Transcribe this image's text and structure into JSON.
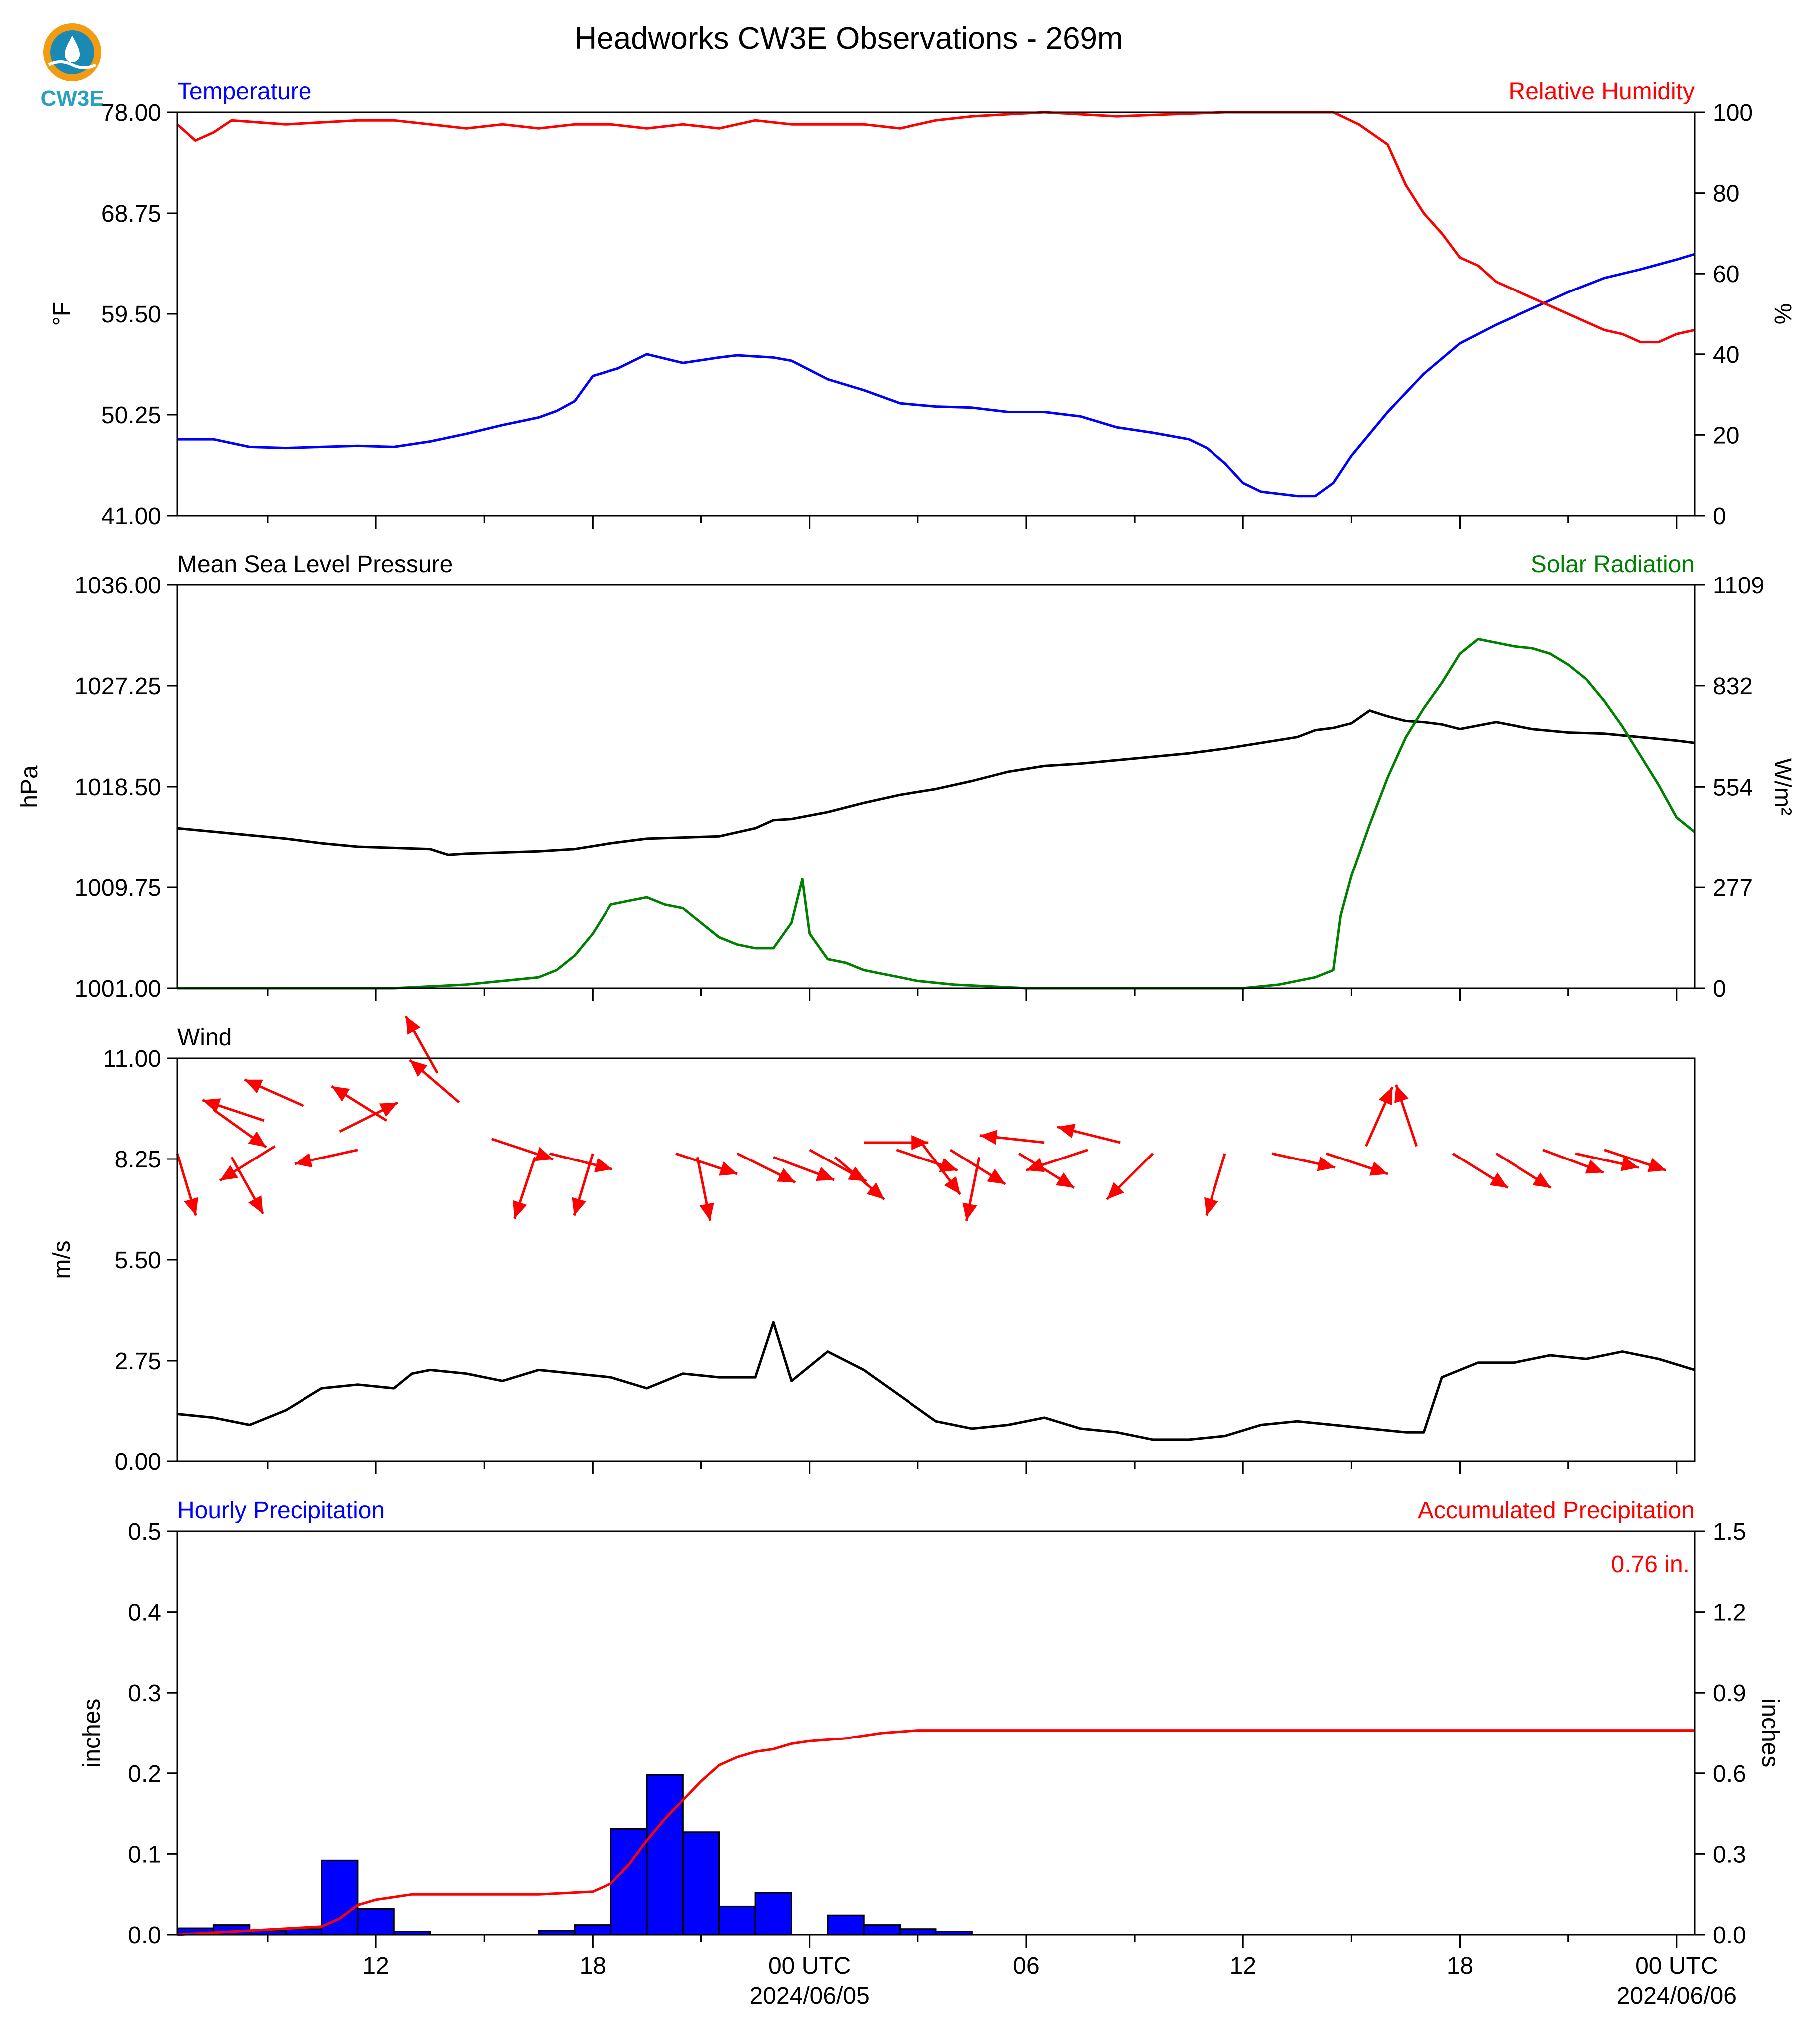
{
  "title": "Headworks CW3E Observations - 269m",
  "logo": {
    "text": "CW3E",
    "colors": [
      "#f39c12",
      "#1a8ab5",
      "#2a9fbf"
    ]
  },
  "colors": {
    "blue": "#0000ff",
    "red": "#ff0000",
    "green": "#008000",
    "black": "#000000"
  },
  "time_axis": {
    "start_hour": 6.5,
    "end_hour": 48.5,
    "major_ticks": [
      {
        "h": 12,
        "label": "12",
        "date": ""
      },
      {
        "h": 18,
        "label": "18",
        "date": ""
      },
      {
        "h": 24,
        "label": "00 UTC",
        "date": "2024/06/05"
      },
      {
        "h": 30,
        "label": "06",
        "date": ""
      },
      {
        "h": 36,
        "label": "12",
        "date": ""
      },
      {
        "h": 42,
        "label": "18",
        "date": ""
      },
      {
        "h": 48,
        "label": "00 UTC",
        "date": "2024/06/06"
      }
    ]
  },
  "chart_data": [
    {
      "type": "line",
      "panel": "temperature_humidity",
      "left_title": "Temperature",
      "right_title": "Relative Humidity",
      "ylabel": "°F",
      "ylabel_right": "%",
      "ylim": [
        41.0,
        78.0
      ],
      "yticks": [
        "41.00",
        "50.25",
        "59.50",
        "68.75",
        "78.00"
      ],
      "ylim_right": [
        0,
        100
      ],
      "yticks_right": [
        "0",
        "20",
        "40",
        "60",
        "80",
        "100"
      ],
      "series": [
        {
          "axis": "left",
          "color": "#0000ff",
          "x": [
            6.5,
            7.5,
            8.5,
            9.5,
            10.5,
            11.5,
            12.5,
            13.5,
            14.5,
            15.5,
            16.5,
            17.0,
            17.5,
            18.0,
            18.7,
            19.5,
            20.5,
            21.5,
            22.0,
            22.5,
            23.0,
            23.5,
            24.5,
            25.5,
            26.5,
            27.5,
            28.5,
            29.5,
            30.5,
            31.5,
            32.5,
            33.5,
            34.5,
            35.0,
            35.5,
            36.0,
            36.5,
            37.0,
            37.5,
            38.0,
            38.5,
            39.0,
            40.0,
            41.0,
            42.0,
            43.0,
            44.0,
            45.0,
            46.0,
            47.0,
            48.0,
            48.5
          ],
          "y": [
            48.0,
            48.0,
            47.3,
            47.2,
            47.3,
            47.4,
            47.3,
            47.8,
            48.5,
            49.3,
            50.0,
            50.6,
            51.5,
            53.8,
            54.5,
            55.8,
            55.0,
            55.5,
            55.7,
            55.6,
            55.5,
            55.2,
            53.5,
            52.5,
            51.3,
            51.0,
            50.9,
            50.5,
            50.5,
            50.1,
            49.1,
            48.6,
            48.0,
            47.2,
            45.8,
            44.0,
            43.2,
            43.0,
            42.8,
            42.8,
            44.0,
            46.5,
            50.5,
            54.0,
            56.8,
            58.5,
            60.0,
            61.5,
            62.8,
            63.6,
            64.5,
            65.0
          ]
        },
        {
          "axis": "right",
          "color": "#ff0000",
          "x": [
            6.5,
            7.0,
            7.5,
            8.0,
            9.5,
            11.5,
            12.5,
            13.5,
            14.5,
            15.5,
            16.5,
            17.5,
            18.5,
            19.5,
            20.5,
            21.5,
            22.5,
            23.5,
            24.5,
            25.5,
            26.5,
            27.5,
            28.5,
            30.5,
            32.5,
            35.5,
            37.5,
            38.5,
            39.2,
            40.0,
            40.5,
            41.0,
            41.5,
            42.0,
            42.5,
            43.0,
            43.5,
            44.0,
            44.5,
            45.0,
            45.5,
            46.0,
            46.5,
            47.0,
            47.5,
            48.0,
            48.5
          ],
          "y": [
            97,
            93,
            95,
            98,
            97,
            98,
            98,
            97,
            96,
            97,
            96,
            97,
            97,
            96,
            97,
            96,
            98,
            97,
            97,
            97,
            96,
            98,
            99,
            100,
            99,
            100,
            100,
            100,
            97,
            92,
            82,
            75,
            70,
            64,
            62,
            58,
            56,
            54,
            52,
            50,
            48,
            46,
            45,
            43,
            43,
            45,
            46
          ]
        }
      ]
    },
    {
      "type": "line",
      "panel": "pressure_solar",
      "left_title": "Mean Sea Level Pressure",
      "right_title": "Solar Radiation",
      "ylabel": "hPa",
      "ylabel_right": "W/m²",
      "ylim": [
        1001.0,
        1036.0
      ],
      "yticks": [
        "1001.00",
        "1009.75",
        "1018.50",
        "1027.25",
        "1036.00"
      ],
      "ylim_right": [
        0,
        1109
      ],
      "yticks_right": [
        "0",
        "277",
        "554",
        "832",
        "1109"
      ],
      "series": [
        {
          "axis": "left",
          "color": "#000000",
          "x": [
            6.5,
            7.5,
            8.5,
            9.5,
            10.5,
            11.5,
            12.5,
            13.5,
            14.0,
            14.5,
            15.5,
            16.5,
            17.5,
            18.5,
            19.5,
            20.5,
            21.5,
            22.5,
            23.0,
            23.5,
            24.5,
            25.5,
            26.5,
            27.5,
            28.5,
            29.5,
            30.5,
            31.5,
            32.5,
            33.5,
            34.5,
            35.5,
            36.5,
            37.5,
            38.0,
            38.5,
            39.0,
            39.5,
            40.0,
            40.5,
            41.0,
            41.5,
            42.0,
            42.5,
            43.0,
            44.0,
            45.0,
            46.0,
            47.0,
            48.0,
            48.5
          ],
          "y": [
            1014.9,
            1014.6,
            1014.3,
            1014.0,
            1013.6,
            1013.3,
            1013.2,
            1013.1,
            1012.6,
            1012.7,
            1012.8,
            1012.9,
            1013.1,
            1013.6,
            1014.0,
            1014.1,
            1014.2,
            1014.9,
            1015.6,
            1015.7,
            1016.3,
            1017.1,
            1017.8,
            1018.3,
            1019.0,
            1019.8,
            1020.3,
            1020.5,
            1020.8,
            1021.1,
            1021.4,
            1021.8,
            1022.3,
            1022.8,
            1023.4,
            1023.6,
            1024.0,
            1025.1,
            1024.6,
            1024.2,
            1024.1,
            1023.9,
            1023.5,
            1023.8,
            1024.1,
            1023.5,
            1023.2,
            1023.1,
            1022.8,
            1022.5,
            1022.3
          ]
        },
        {
          "axis": "right",
          "color": "#008000",
          "x": [
            6.5,
            8.5,
            10.5,
            12.5,
            13.5,
            14.5,
            15.5,
            16.5,
            17.0,
            17.5,
            18.0,
            18.5,
            19.0,
            19.5,
            20.0,
            20.5,
            21.0,
            21.5,
            22.0,
            22.5,
            23.0,
            23.5,
            23.8,
            24.0,
            24.5,
            25.0,
            25.5,
            26.0,
            27.0,
            28.0,
            29.0,
            30.0,
            32.0,
            34.0,
            35.0,
            36.0,
            37.0,
            38.0,
            38.5,
            38.7,
            39.0,
            39.5,
            40.0,
            40.5,
            41.0,
            41.5,
            42.0,
            42.5,
            43.0,
            43.5,
            44.0,
            44.5,
            45.0,
            45.5,
            46.0,
            46.5,
            47.0,
            47.5,
            48.0,
            48.5
          ],
          "y": [
            0,
            0,
            0,
            0,
            5,
            10,
            20,
            30,
            50,
            90,
            150,
            230,
            240,
            250,
            230,
            220,
            180,
            140,
            120,
            110,
            110,
            180,
            300,
            150,
            80,
            70,
            50,
            40,
            20,
            10,
            5,
            0,
            0,
            0,
            0,
            0,
            10,
            30,
            50,
            200,
            310,
            450,
            580,
            690,
            770,
            840,
            920,
            960,
            950,
            940,
            935,
            920,
            890,
            850,
            790,
            720,
            640,
            560,
            470,
            430
          ]
        }
      ]
    },
    {
      "type": "line",
      "panel": "wind",
      "left_title": "Wind",
      "ylabel": "m/s",
      "ylim": [
        0.0,
        11.0
      ],
      "yticks": [
        "0.00",
        "2.75",
        "5.50",
        "8.25",
        "11.00"
      ],
      "series": [
        {
          "axis": "left",
          "color": "#000000",
          "x": [
            6.5,
            7.5,
            8.5,
            9.5,
            10.5,
            11.5,
            12.5,
            13.0,
            13.5,
            14.5,
            15.5,
            16.5,
            17.5,
            18.5,
            19.5,
            20.5,
            21.5,
            22.5,
            23.0,
            23.5,
            24.5,
            25.5,
            26.5,
            27.5,
            28.5,
            29.5,
            30.5,
            31.5,
            32.5,
            33.5,
            34.5,
            35.5,
            36.5,
            37.5,
            38.5,
            39.5,
            40.5,
            41.0,
            41.5,
            42.5,
            43.5,
            44.5,
            45.5,
            46.5,
            47.5,
            48.5
          ],
          "y": [
            1.3,
            1.2,
            1.0,
            1.4,
            2.0,
            2.1,
            2.0,
            2.4,
            2.5,
            2.4,
            2.2,
            2.5,
            2.4,
            2.3,
            2.0,
            2.4,
            2.3,
            2.3,
            3.8,
            2.2,
            3.0,
            2.5,
            1.8,
            1.1,
            0.9,
            1.0,
            1.2,
            0.9,
            0.8,
            0.6,
            0.6,
            0.7,
            1.0,
            1.1,
            1.0,
            0.9,
            0.8,
            0.8,
            2.3,
            2.7,
            2.7,
            2.9,
            2.8,
            3.0,
            2.8,
            2.5
          ]
        }
      ],
      "barbs_note": "arrows show wind direction",
      "arrows": [
        {
          "x": 6.5,
          "y": 8.4,
          "u": 0.3,
          "v": -1.0
        },
        {
          "x": 7.5,
          "y": 9.6,
          "u": 0.7,
          "v": -0.5
        },
        {
          "x": 8.0,
          "y": 8.3,
          "u": 0.5,
          "v": -0.9
        },
        {
          "x": 8.9,
          "y": 9.3,
          "u": -0.9,
          "v": 0.3
        },
        {
          "x": 9.2,
          "y": 8.6,
          "u": -0.8,
          "v": -0.5
        },
        {
          "x": 10.0,
          "y": 9.7,
          "u": -0.9,
          "v": 0.4
        },
        {
          "x": 11.0,
          "y": 9.0,
          "u": 0.8,
          "v": 0.4
        },
        {
          "x": 11.5,
          "y": 8.5,
          "u": -0.9,
          "v": -0.2
        },
        {
          "x": 12.3,
          "y": 9.3,
          "u": -0.8,
          "v": 0.5
        },
        {
          "x": 13.7,
          "y": 10.6,
          "u": -0.5,
          "v": 0.9
        },
        {
          "x": 14.3,
          "y": 9.8,
          "u": -0.7,
          "v": 0.6
        },
        {
          "x": 15.2,
          "y": 8.8,
          "u": 0.9,
          "v": -0.3
        },
        {
          "x": 16.4,
          "y": 8.3,
          "u": -0.3,
          "v": -0.9
        },
        {
          "x": 16.8,
          "y": 8.4,
          "u": 0.8,
          "v": -0.2
        },
        {
          "x": 18.0,
          "y": 8.4,
          "u": -0.3,
          "v": -1.0
        },
        {
          "x": 20.3,
          "y": 8.4,
          "u": 0.9,
          "v": -0.3
        },
        {
          "x": 20.9,
          "y": 8.3,
          "u": 0.2,
          "v": -1.0
        },
        {
          "x": 22.0,
          "y": 8.4,
          "u": 0.8,
          "v": -0.4
        },
        {
          "x": 23.0,
          "y": 8.3,
          "u": 0.8,
          "v": -0.3
        },
        {
          "x": 24.0,
          "y": 8.5,
          "u": 0.9,
          "v": -0.5
        },
        {
          "x": 24.7,
          "y": 8.3,
          "u": 0.7,
          "v": -0.6
        },
        {
          "x": 25.5,
          "y": 8.7,
          "u": 0.9,
          "v": 0.0
        },
        {
          "x": 26.4,
          "y": 8.5,
          "u": 0.9,
          "v": -0.3
        },
        {
          "x": 27.1,
          "y": 8.7,
          "u": 0.6,
          "v": -0.8
        },
        {
          "x": 27.9,
          "y": 8.5,
          "u": 0.8,
          "v": -0.5
        },
        {
          "x": 28.7,
          "y": 8.3,
          "u": -0.2,
          "v": -1.0
        },
        {
          "x": 29.8,
          "y": 8.4,
          "u": 0.8,
          "v": -0.5
        },
        {
          "x": 30.5,
          "y": 8.7,
          "u": -0.9,
          "v": 0.1
        },
        {
          "x": 31.7,
          "y": 8.5,
          "u": -0.9,
          "v": -0.3
        },
        {
          "x": 32.6,
          "y": 8.7,
          "u": -0.8,
          "v": 0.2
        },
        {
          "x": 33.5,
          "y": 8.4,
          "u": -0.7,
          "v": -0.7
        },
        {
          "x": 35.5,
          "y": 8.4,
          "u": -0.3,
          "v": -1.0
        },
        {
          "x": 36.8,
          "y": 8.4,
          "u": 0.9,
          "v": -0.2
        },
        {
          "x": 38.3,
          "y": 8.4,
          "u": 0.9,
          "v": -0.3
        },
        {
          "x": 39.4,
          "y": 8.6,
          "u": 0.4,
          "v": 0.9
        },
        {
          "x": 40.8,
          "y": 8.6,
          "u": -0.3,
          "v": 0.9
        },
        {
          "x": 41.8,
          "y": 8.4,
          "u": 0.8,
          "v": -0.5
        },
        {
          "x": 43.0,
          "y": 8.4,
          "u": 0.8,
          "v": -0.5
        },
        {
          "x": 44.3,
          "y": 8.5,
          "u": 0.8,
          "v": -0.3
        },
        {
          "x": 45.2,
          "y": 8.4,
          "u": 0.9,
          "v": -0.2
        },
        {
          "x": 46.0,
          "y": 8.5,
          "u": 0.9,
          "v": -0.3
        }
      ]
    },
    {
      "type": "bar",
      "panel": "precipitation",
      "left_title": "Hourly Precipitation",
      "right_title": "Accumulated Precipitation",
      "ylabel": "inches",
      "ylabel_right": "inches",
      "ylim": [
        0.0,
        0.5
      ],
      "yticks": [
        "0.0",
        "0.1",
        "0.2",
        "0.3",
        "0.4",
        "0.5"
      ],
      "ylim_right": [
        0.0,
        1.5
      ],
      "yticks_right": [
        "0.0",
        "0.3",
        "0.6",
        "0.9",
        "1.2",
        "1.5"
      ],
      "total_label": "0.76 in.",
      "hourly_bars": {
        "x": [
          7.0,
          8.0,
          9.0,
          10.0,
          11.0,
          12.0,
          13.0,
          14.0,
          15.0,
          16.0,
          17.0,
          18.0,
          19.0,
          20.0,
          21.0,
          22.0,
          23.0,
          24.0,
          25.0,
          26.0,
          27.0,
          28.0,
          29.0
        ],
        "values": [
          0.008,
          0.012,
          0.005,
          0.007,
          0.092,
          0.032,
          0.004,
          0.0,
          0.0,
          0.0,
          0.005,
          0.012,
          0.131,
          0.198,
          0.127,
          0.035,
          0.052,
          0.0,
          0.024,
          0.012,
          0.007,
          0.004,
          0.0
        ]
      },
      "accumulated": {
        "color": "#ff0000",
        "x": [
          6.5,
          10.5,
          11.0,
          11.5,
          12.0,
          12.5,
          13.0,
          14.5,
          16.5,
          18.0,
          18.5,
          19.0,
          19.5,
          20.0,
          20.5,
          21.0,
          21.5,
          22.0,
          22.5,
          23.0,
          23.5,
          24.0,
          25.0,
          26.0,
          27.0,
          28.0,
          30.0,
          35.0,
          40.0,
          48.5
        ],
        "values": [
          0.0,
          0.03,
          0.06,
          0.11,
          0.13,
          0.14,
          0.15,
          0.15,
          0.15,
          0.16,
          0.19,
          0.26,
          0.35,
          0.43,
          0.5,
          0.57,
          0.63,
          0.66,
          0.68,
          0.69,
          0.71,
          0.72,
          0.73,
          0.75,
          0.76,
          0.76,
          0.76,
          0.76,
          0.76,
          0.76
        ]
      }
    }
  ]
}
